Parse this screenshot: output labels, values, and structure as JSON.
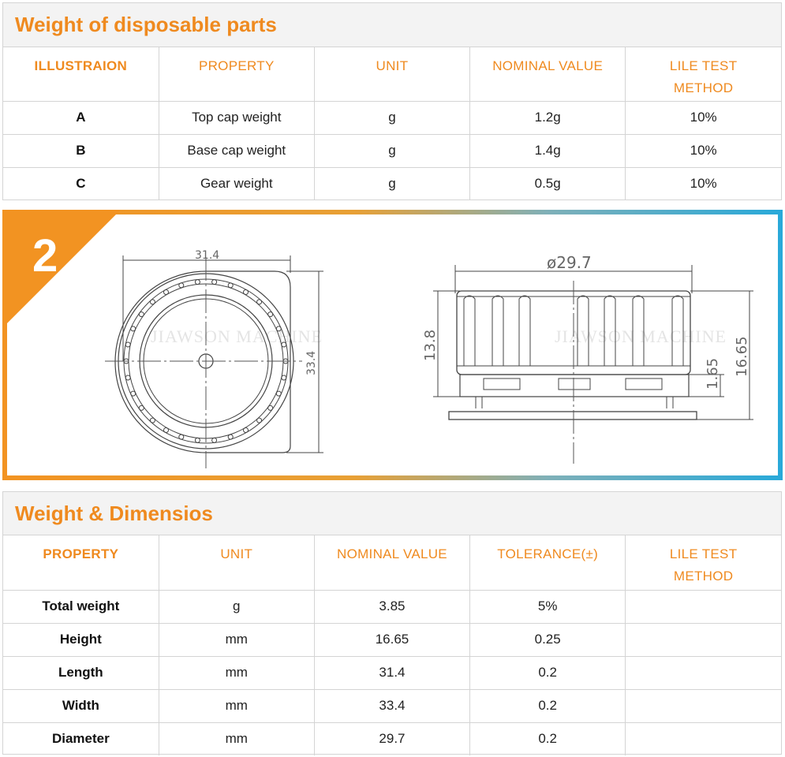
{
  "parts_table": {
    "title": "Weight of disposable parts",
    "headers": [
      "ILLUSTRAION",
      "PROPERTY",
      "UNIT",
      "NOMINAL VALUE",
      "LILE TEST\nMETHOD"
    ],
    "rows": [
      [
        "A",
        "Top cap weight",
        "g",
        "1.2g",
        "10%"
      ],
      [
        "B",
        "Base cap weight",
        "g",
        "1.4g",
        "10%"
      ],
      [
        "C",
        "Gear weight",
        "g",
        "0.5g",
        "10%"
      ]
    ]
  },
  "drawing": {
    "step_number": "2",
    "watermark": "JIAWSON MACHINE",
    "dim_length": "31.4",
    "dim_width": "33.4",
    "dim_diameter": "ø29.7",
    "dim_body_height": "13.8",
    "dim_base_height": "1.65",
    "dim_total_height": "16.65",
    "colors": {
      "orange": "#f29322",
      "blue": "#29a9d9"
    }
  },
  "dimensions_table": {
    "title": "Weight & Dimensios",
    "headers": [
      "PROPERTY",
      "UNIT",
      "NOMINAL VALUE",
      "TOLERANCE(±)",
      "LILE TEST\nMETHOD"
    ],
    "rows": [
      [
        "Total weight",
        "g",
        "3.85",
        "5%",
        ""
      ],
      [
        "Height",
        "mm",
        "16.65",
        "0.25",
        ""
      ],
      [
        "Length",
        "mm",
        "31.4",
        "0.2",
        ""
      ],
      [
        "Width",
        "mm",
        "33.4",
        "0.2",
        ""
      ],
      [
        "Diameter",
        "mm",
        "29.7",
        "0.2",
        ""
      ]
    ]
  }
}
